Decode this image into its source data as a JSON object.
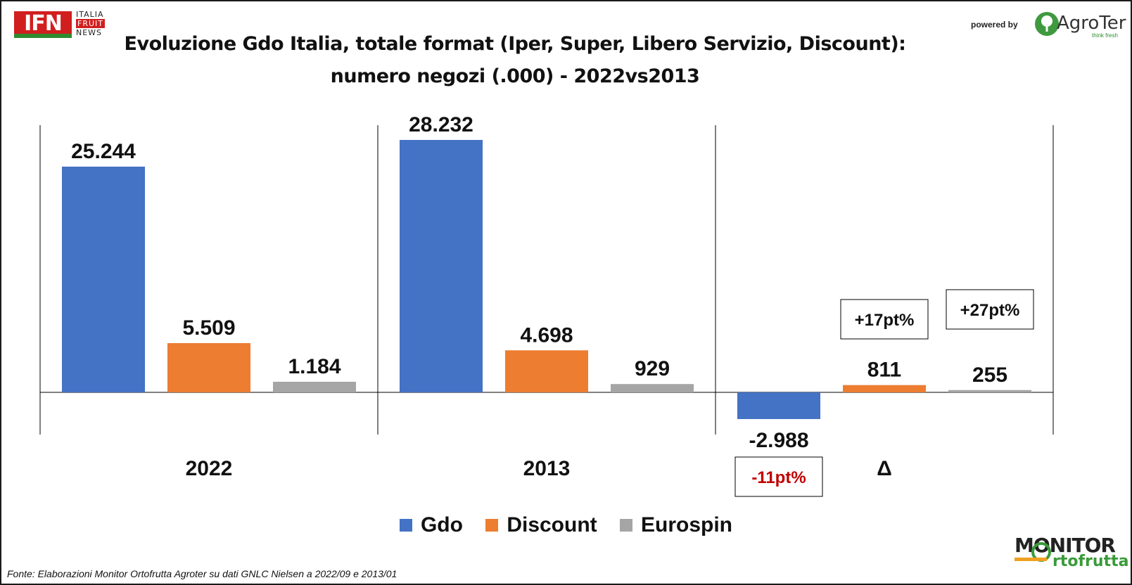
{
  "header": {
    "title_line1": "Evoluzione Gdo Italia, totale format (Iper, Super, Libero Servizio, Discount):",
    "title_line2": "numero negozi (.000) - 2022vs2013",
    "ifn_logo": "IFN",
    "ifn_line1": "ITALIA",
    "ifn_line2": "FRUIT",
    "ifn_line3": "NEWS",
    "powered_by": "powered by",
    "agroter_name": "AgroTer",
    "agroter_tagline": "think fresh"
  },
  "footer": {
    "source": "Fonte: Elaborazioni Monitor Ortofrutta Agroter su dati GNLC Nielsen a 2022/09 e 2013/01",
    "monitor_line1": "MONITOR",
    "monitor_line2": "rtofrutta"
  },
  "colors": {
    "gdo": "#4472C4",
    "discount": "#ED7D31",
    "eurospin": "#A5A5A5",
    "negative_pct": "#C00000"
  },
  "chart_data": {
    "type": "bar",
    "title": "Evoluzione Gdo Italia, totale format (Iper, Super, Libero Servizio, Discount): numero negozi (.000) - 2022vs2013",
    "categories": [
      "2022",
      "2013",
      "Δ"
    ],
    "series": [
      {
        "name": "Gdo",
        "values": [
          25244,
          28232,
          -2988
        ],
        "labels": [
          "25.244",
          "28.232",
          "-2.988"
        ]
      },
      {
        "name": "Discount",
        "values": [
          5509,
          4698,
          811
        ],
        "labels": [
          "5.509",
          "4.698",
          "811"
        ]
      },
      {
        "name": "Eurospin",
        "values": [
          1184,
          929,
          255
        ],
        "labels": [
          "1.184",
          "929",
          "255"
        ]
      }
    ],
    "annotations": [
      {
        "category": "Δ",
        "series": "Gdo",
        "text": "-11pt%"
      },
      {
        "category": "Δ",
        "series": "Discount",
        "text": "+17pt%"
      },
      {
        "category": "Δ",
        "series": "Eurospin",
        "text": "+27pt%"
      }
    ],
    "ylim": [
      -4000,
      30000
    ],
    "grid": false,
    "legend": "bottom-center"
  }
}
